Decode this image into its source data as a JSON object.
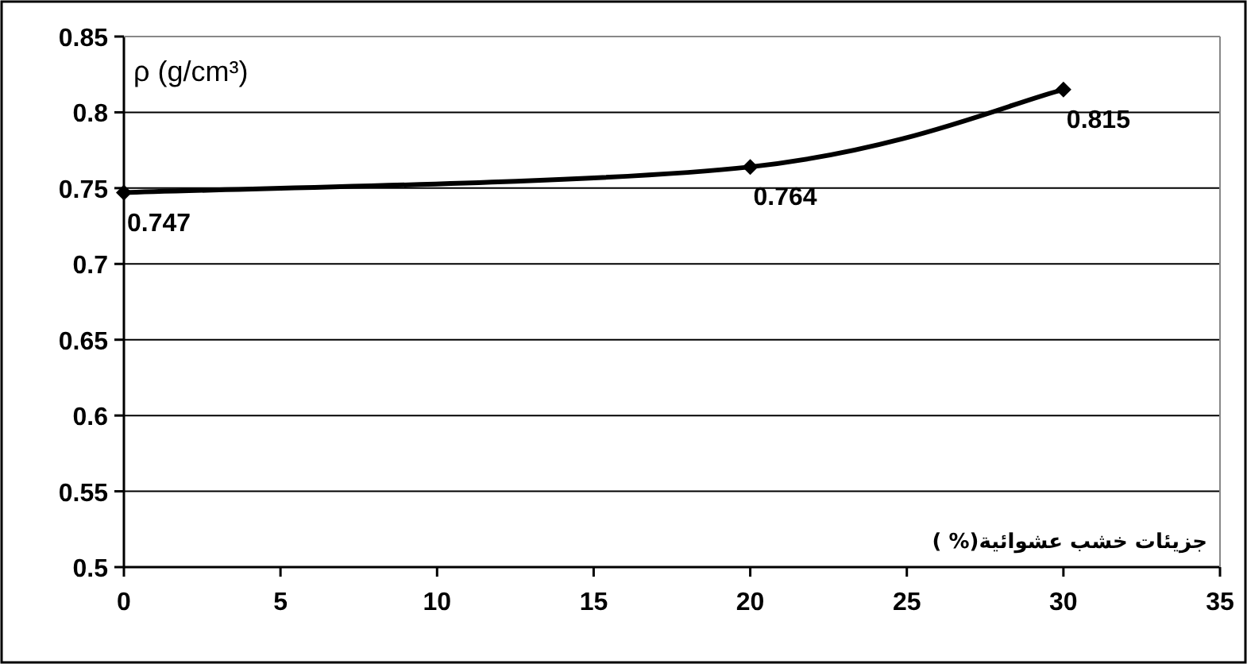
{
  "chart_data": {
    "type": "line",
    "ylabel": "ρ (g/cm³)",
    "xlabel": "جزيئات خشب عشوائية(% )",
    "x": [
      0,
      20,
      30
    ],
    "series": [
      {
        "color": "#000000",
        "values": [
          0.747,
          0.764,
          0.815
        ]
      }
    ],
    "xlim": [
      0,
      35
    ],
    "xticks": [
      0,
      5,
      10,
      15,
      20,
      25,
      30,
      35
    ],
    "ylim": [
      0.5,
      0.85
    ],
    "yticks": [
      0.5,
      0.55,
      0.6,
      0.65,
      0.7,
      0.75,
      0.8,
      0.85
    ],
    "grid": "y",
    "marker": "diamond",
    "line_style": "solid",
    "data_labels": true
  }
}
